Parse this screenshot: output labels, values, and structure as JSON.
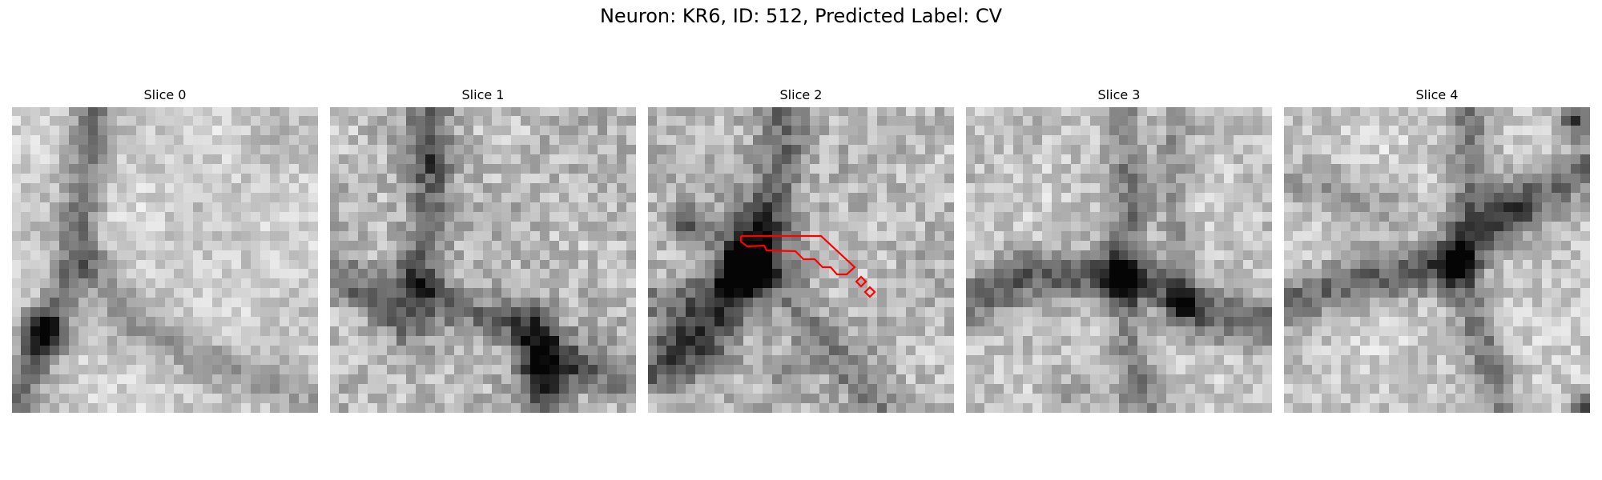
{
  "figure": {
    "title": "Neuron: KR6, ID: 512, Predicted Label: CV"
  },
  "slices": [
    {
      "title": "Slice 0"
    },
    {
      "title": "Slice 1"
    },
    {
      "title": "Slice 2"
    },
    {
      "title": "Slice 3"
    },
    {
      "title": "Slice 4"
    }
  ],
  "colors": {
    "contour": "#ff0000",
    "colormap": "grayscale"
  }
}
